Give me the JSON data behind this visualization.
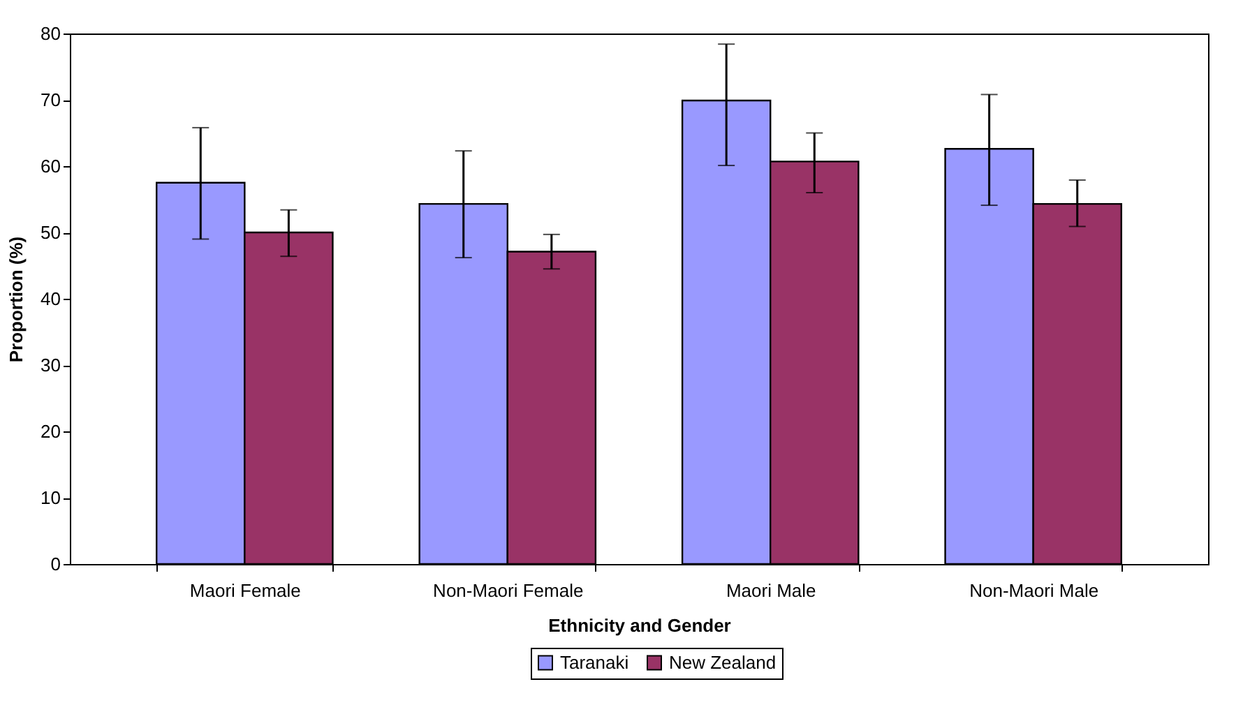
{
  "chart_data": {
    "type": "bar",
    "xlabel": "Ethnicity and Gender",
    "ylabel": "Proportion (%)",
    "categories": [
      "Maori Female",
      "Non-Maori Female",
      "Maori Male",
      "Non-Maori Male"
    ],
    "series": [
      {
        "name": "Taranaki",
        "color": "#9999ff",
        "values": [
          57.5,
          54.3,
          69.9,
          62.6
        ],
        "errors": [
          [
            49.0,
            65.8
          ],
          [
            46.2,
            62.3
          ],
          [
            60.1,
            78.4
          ],
          [
            54.1,
            70.8
          ]
        ]
      },
      {
        "name": "New Zealand",
        "color": "#993366",
        "values": [
          50.0,
          47.1,
          60.7,
          54.3
        ],
        "errors": [
          [
            46.4,
            53.4
          ],
          [
            44.5,
            49.7
          ],
          [
            56.0,
            65.0
          ],
          [
            50.9,
            57.9
          ]
        ]
      }
    ],
    "ylim": [
      0,
      80
    ],
    "yticks": [
      0,
      10,
      20,
      30,
      40,
      50,
      60,
      70,
      80
    ],
    "grid": false,
    "legend": "bottom"
  }
}
